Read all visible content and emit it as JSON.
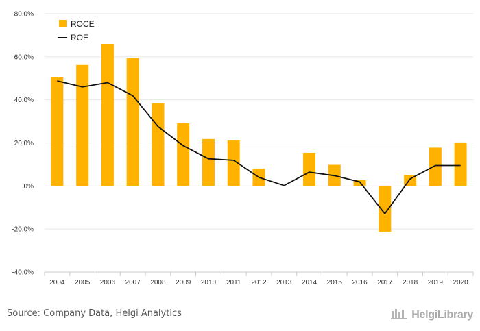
{
  "chart_data": {
    "type": "bar",
    "categories": [
      "2004",
      "2005",
      "2006",
      "2007",
      "2008",
      "2009",
      "2010",
      "2011",
      "2012",
      "2013",
      "2014",
      "2015",
      "2016",
      "2017",
      "2018",
      "2019",
      "2020"
    ],
    "series": [
      {
        "name": "ROCE",
        "type": "bar",
        "color": "#FFB300",
        "values": [
          50.7,
          56.2,
          66.0,
          59.4,
          38.4,
          29.1,
          21.8,
          21.1,
          8.1,
          0,
          15.4,
          9.8,
          2.7,
          -21.3,
          5.2,
          17.8,
          20.2
        ]
      },
      {
        "name": "ROE",
        "type": "line",
        "color": "#111111",
        "values": [
          48.8,
          46.0,
          48.0,
          41.9,
          27.6,
          18.7,
          12.6,
          11.9,
          4.0,
          0.2,
          6.4,
          4.8,
          1.9,
          -12.9,
          3.3,
          9.5,
          9.5
        ]
      }
    ],
    "yticks": [
      "80.0%",
      "60.0%",
      "40.0%",
      "20.0%",
      "0%",
      "-20.0%",
      "-40.0%"
    ],
    "ylim": [
      -40,
      80
    ],
    "grid": true,
    "legend_position": "top-left"
  },
  "footer": {
    "source": "Source: Company Data, Helgi Analytics",
    "brand": "HelgiLibrary",
    "brand_icon": "helgi-library-logo-icon"
  }
}
